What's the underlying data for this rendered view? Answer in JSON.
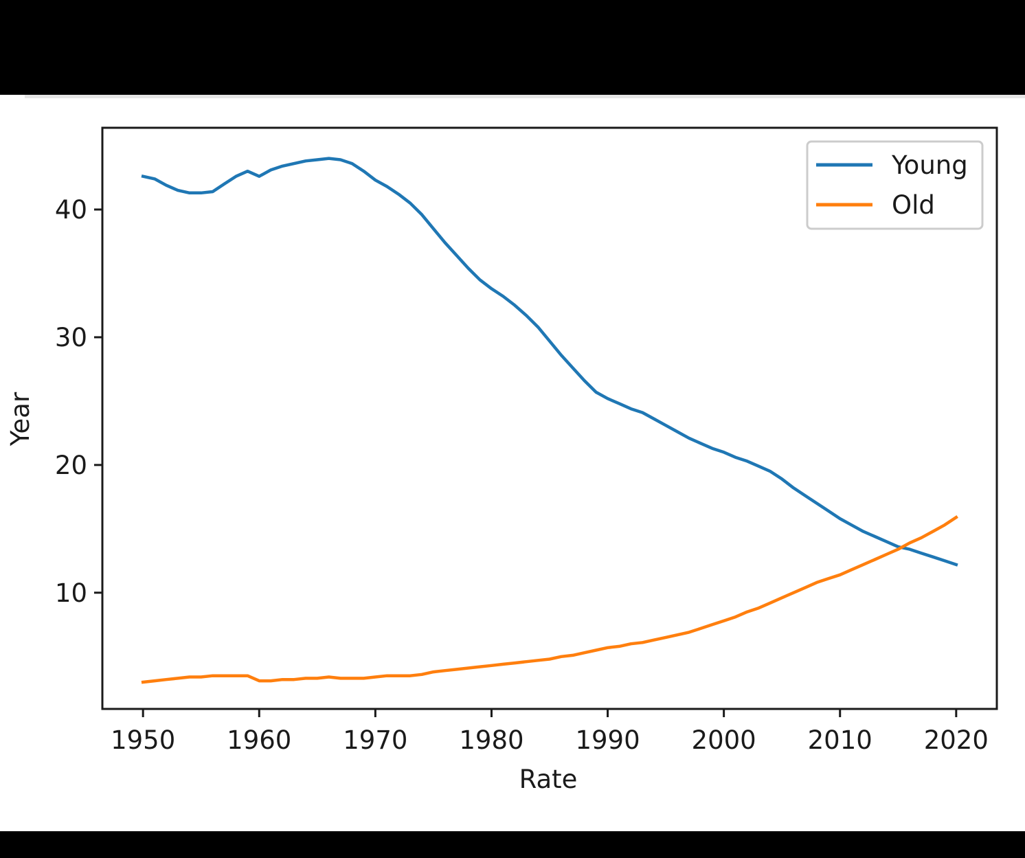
{
  "chart_data": {
    "type": "line",
    "title": "",
    "xlabel": "Rate",
    "ylabel": "Year",
    "xlim": [
      1946.5,
      2023.5
    ],
    "ylim": [
      0.9,
      46.4
    ],
    "x_ticks": [
      1950,
      1960,
      1970,
      1980,
      1990,
      2000,
      2010,
      2020
    ],
    "y_ticks": [
      10,
      20,
      30,
      40
    ],
    "grid": false,
    "legend_position": "top-right",
    "x": [
      1950,
      1951,
      1952,
      1953,
      1954,
      1955,
      1956,
      1957,
      1958,
      1959,
      1960,
      1961,
      1962,
      1963,
      1964,
      1965,
      1966,
      1967,
      1968,
      1969,
      1970,
      1971,
      1972,
      1973,
      1974,
      1975,
      1976,
      1977,
      1978,
      1979,
      1980,
      1981,
      1982,
      1983,
      1984,
      1985,
      1986,
      1987,
      1988,
      1989,
      1990,
      1991,
      1992,
      1993,
      1994,
      1995,
      1996,
      1997,
      1998,
      1999,
      2000,
      2001,
      2002,
      2003,
      2004,
      2005,
      2006,
      2007,
      2008,
      2009,
      2010,
      2011,
      2012,
      2013,
      2014,
      2015,
      2016,
      2017,
      2018,
      2019,
      2020
    ],
    "series": [
      {
        "name": "Young",
        "color": "#1f77b4",
        "values": [
          42.6,
          42.4,
          41.9,
          41.5,
          41.3,
          41.3,
          41.4,
          42.0,
          42.6,
          43.0,
          42.6,
          43.1,
          43.4,
          43.6,
          43.8,
          43.9,
          44.0,
          43.9,
          43.6,
          43.0,
          42.3,
          41.8,
          41.2,
          40.5,
          39.6,
          38.5,
          37.4,
          36.4,
          35.4,
          34.5,
          33.8,
          33.2,
          32.5,
          31.7,
          30.8,
          29.7,
          28.6,
          27.6,
          26.6,
          25.7,
          25.2,
          24.8,
          24.4,
          24.1,
          23.6,
          23.1,
          22.6,
          22.1,
          21.7,
          21.3,
          21.0,
          20.6,
          20.3,
          19.9,
          19.5,
          18.9,
          18.2,
          17.6,
          17.0,
          16.4,
          15.8,
          15.3,
          14.8,
          14.4,
          14.0,
          13.6,
          13.4,
          13.1,
          12.8,
          12.5,
          12.2
        ]
      },
      {
        "name": "Old",
        "color": "#ff7f0e",
        "values": [
          3.0,
          3.1,
          3.2,
          3.3,
          3.4,
          3.4,
          3.5,
          3.5,
          3.5,
          3.5,
          3.1,
          3.1,
          3.2,
          3.2,
          3.3,
          3.3,
          3.4,
          3.3,
          3.3,
          3.3,
          3.4,
          3.5,
          3.5,
          3.5,
          3.6,
          3.8,
          3.9,
          4.0,
          4.1,
          4.2,
          4.3,
          4.4,
          4.5,
          4.6,
          4.7,
          4.8,
          5.0,
          5.1,
          5.3,
          5.5,
          5.7,
          5.8,
          6.0,
          6.1,
          6.3,
          6.5,
          6.7,
          6.9,
          7.2,
          7.5,
          7.8,
          8.1,
          8.5,
          8.8,
          9.2,
          9.6,
          10.0,
          10.4,
          10.8,
          11.1,
          11.4,
          11.8,
          12.2,
          12.6,
          13.0,
          13.4,
          13.9,
          14.3,
          14.8,
          15.3,
          15.9
        ]
      }
    ]
  }
}
